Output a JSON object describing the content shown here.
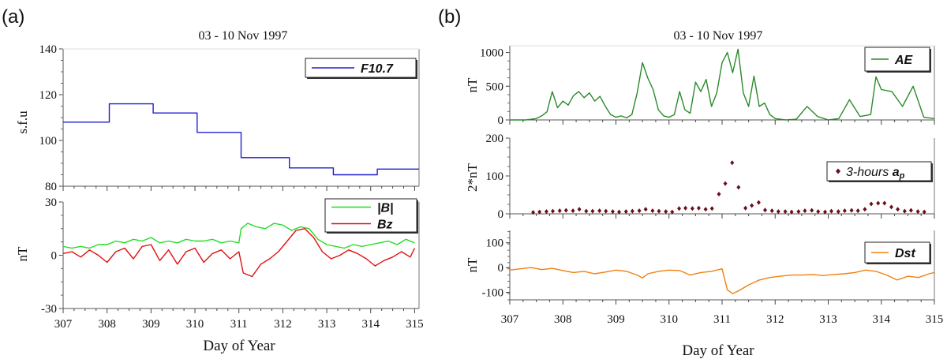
{
  "panels": {
    "a": {
      "label": "(a)",
      "title": "03 - 10 Nov 1997",
      "xlabel": "Day of Year",
      "xticks": [
        "307",
        "308",
        "309",
        "310",
        "311",
        "312",
        "313",
        "314",
        "315"
      ]
    },
    "b": {
      "label": "(b)",
      "title": "03 - 10 Nov 1997",
      "xlabel": "Day of Year",
      "xticks": [
        "307",
        "308",
        "309",
        "310",
        "311",
        "312",
        "313",
        "314",
        "315"
      ]
    }
  },
  "chart_data": [
    {
      "id": "a-top",
      "type": "line",
      "ylabel": "s.f.u",
      "xlim": [
        307,
        315.1
      ],
      "ylim": [
        80,
        140
      ],
      "yticks": [
        "140",
        "120",
        "100",
        "80"
      ],
      "series": [
        {
          "name": "F10.7",
          "color": "#1f1fd0",
          "x": [
            307,
            308.05,
            308.05,
            309.05,
            309.05,
            310.05,
            310.05,
            311.05,
            311.05,
            312.15,
            312.15,
            313.15,
            313.15,
            314.15,
            314.15,
            315.1
          ],
          "y": [
            108,
            108,
            116,
            116,
            112,
            112,
            103.5,
            103.5,
            92.5,
            92.5,
            88,
            88,
            85,
            85,
            87.5,
            87.5
          ]
        }
      ],
      "legend": "top-right"
    },
    {
      "id": "a-bottom",
      "type": "line",
      "ylabel": "nT",
      "xlim": [
        307,
        315.1
      ],
      "ylim": [
        -30,
        30
      ],
      "yticks": [
        "30",
        "0",
        "-30"
      ],
      "series": [
        {
          "name": "|B|",
          "color": "#22dd22",
          "x": [
            307.0,
            307.2,
            307.4,
            307.6,
            307.8,
            308.0,
            308.2,
            308.4,
            308.6,
            308.8,
            309.0,
            309.2,
            309.4,
            309.6,
            309.8,
            310.0,
            310.2,
            310.4,
            310.6,
            310.8,
            311.0,
            311.05,
            311.2,
            311.4,
            311.6,
            311.8,
            312.0,
            312.2,
            312.4,
            312.6,
            312.8,
            313.0,
            313.2,
            313.4,
            313.6,
            313.8,
            314.0,
            314.2,
            314.4,
            314.6,
            314.8,
            315.0
          ],
          "y": [
            5,
            4,
            5,
            4,
            6,
            6,
            8,
            7,
            9,
            8,
            10,
            7,
            8,
            7,
            9,
            8,
            8,
            9,
            7,
            8,
            7,
            15,
            18,
            16,
            15,
            18,
            17,
            14,
            16,
            15,
            9,
            6,
            5,
            4,
            6,
            5,
            6,
            7,
            8,
            6,
            9,
            7
          ]
        },
        {
          "name": "Bz",
          "color": "#e01010",
          "x": [
            307.0,
            307.2,
            307.4,
            307.6,
            307.8,
            308.0,
            308.2,
            308.4,
            308.6,
            308.8,
            309.0,
            309.2,
            309.4,
            309.6,
            309.8,
            310.0,
            310.2,
            310.4,
            310.6,
            310.8,
            311.0,
            311.1,
            311.3,
            311.5,
            311.7,
            311.9,
            312.1,
            312.3,
            312.5,
            312.7,
            312.9,
            313.1,
            313.3,
            313.5,
            313.7,
            313.9,
            314.1,
            314.3,
            314.5,
            314.7,
            314.9,
            315.0
          ],
          "y": [
            1,
            2,
            -1,
            3,
            0,
            -4,
            2,
            4,
            -2,
            5,
            6,
            -3,
            3,
            -5,
            2,
            4,
            -4,
            1,
            3,
            -2,
            2,
            -10,
            -12,
            -5,
            -2,
            2,
            8,
            14,
            15,
            10,
            2,
            -2,
            0,
            3,
            1,
            -2,
            -6,
            -3,
            -1,
            2,
            -1,
            4
          ]
        }
      ],
      "legend": "top-right"
    },
    {
      "id": "b-ae",
      "type": "line",
      "ylabel": "nT",
      "xlim": [
        307,
        315
      ],
      "ylim": [
        0,
        1100
      ],
      "yticks": [
        "1000",
        "500",
        "0"
      ],
      "series": [
        {
          "name": "AE",
          "color": "#2a8a2a",
          "x": [
            307.0,
            307.3,
            307.5,
            307.6,
            307.7,
            307.8,
            307.9,
            308.0,
            308.1,
            308.2,
            308.3,
            308.4,
            308.5,
            308.6,
            308.7,
            308.8,
            308.9,
            309.0,
            309.1,
            309.2,
            309.3,
            309.4,
            309.5,
            309.6,
            309.7,
            309.8,
            309.9,
            310.0,
            310.1,
            310.2,
            310.3,
            310.4,
            310.5,
            310.6,
            310.7,
            310.8,
            310.9,
            311.0,
            311.1,
            311.2,
            311.3,
            311.4,
            311.5,
            311.6,
            311.7,
            311.8,
            311.9,
            312.0,
            312.2,
            312.4,
            312.6,
            312.8,
            313.0,
            313.2,
            313.4,
            313.6,
            313.8,
            313.9,
            314.0,
            314.2,
            314.4,
            314.6,
            314.8,
            315.0
          ],
          "y": [
            0,
            0,
            20,
            60,
            120,
            420,
            180,
            280,
            220,
            360,
            420,
            330,
            400,
            280,
            350,
            200,
            80,
            40,
            60,
            30,
            80,
            400,
            850,
            620,
            450,
            150,
            60,
            40,
            80,
            420,
            150,
            100,
            560,
            420,
            600,
            200,
            400,
            850,
            1000,
            700,
            1050,
            400,
            200,
            650,
            200,
            250,
            80,
            20,
            0,
            10,
            200,
            50,
            0,
            20,
            300,
            50,
            80,
            640,
            450,
            420,
            200,
            500,
            40,
            20
          ]
        }
      ],
      "legend": "top-right"
    },
    {
      "id": "b-ap",
      "type": "scatter",
      "ylabel": "2*nT",
      "xlim": [
        307,
        315
      ],
      "ylim": [
        0,
        200
      ],
      "yticks": [
        "200",
        "100",
        "0"
      ],
      "series": [
        {
          "name": "3-hours ap",
          "color": "#6a0f1a",
          "x": [
            307.44,
            307.56,
            307.69,
            307.81,
            307.94,
            308.06,
            308.19,
            308.31,
            308.44,
            308.56,
            308.69,
            308.81,
            308.94,
            309.06,
            309.19,
            309.31,
            309.44,
            309.56,
            309.69,
            309.81,
            309.94,
            310.06,
            310.19,
            310.31,
            310.44,
            310.56,
            310.69,
            310.81,
            310.94,
            311.06,
            311.19,
            311.31,
            311.44,
            311.56,
            311.69,
            311.81,
            311.94,
            312.06,
            312.19,
            312.31,
            312.44,
            312.56,
            312.69,
            312.81,
            312.94,
            313.06,
            313.19,
            313.31,
            313.44,
            313.56,
            313.69,
            313.81,
            313.94,
            314.06,
            314.19,
            314.31,
            314.44,
            314.56,
            314.69,
            314.81
          ],
          "y": [
            4,
            5,
            6,
            7,
            8,
            9,
            8,
            12,
            7,
            7,
            8,
            7,
            6,
            5,
            6,
            7,
            8,
            12,
            8,
            7,
            6,
            5,
            14,
            15,
            14,
            15,
            12,
            14,
            52,
            80,
            135,
            70,
            15,
            22,
            30,
            10,
            8,
            6,
            6,
            5,
            6,
            8,
            9,
            6,
            5,
            7,
            6,
            8,
            9,
            8,
            12,
            26,
            28,
            28,
            18,
            12,
            7,
            9,
            6,
            5
          ]
        }
      ],
      "legend": "right"
    },
    {
      "id": "b-dst",
      "type": "line",
      "ylabel": "nT",
      "xlim": [
        307,
        315
      ],
      "ylim": [
        -130,
        150
      ],
      "yticks": [
        "100",
        "0",
        "-100"
      ],
      "series": [
        {
          "name": "Dst",
          "color": "#f08010",
          "x": [
            307.0,
            307.2,
            307.4,
            307.6,
            307.8,
            308.0,
            308.2,
            308.4,
            308.6,
            308.8,
            309.0,
            309.2,
            309.4,
            309.5,
            309.6,
            309.8,
            310.0,
            310.2,
            310.4,
            310.6,
            310.8,
            311.0,
            311.1,
            311.2,
            311.3,
            311.5,
            311.7,
            311.9,
            312.1,
            312.3,
            312.5,
            312.7,
            312.9,
            313.1,
            313.3,
            313.5,
            313.7,
            313.9,
            314.1,
            314.3,
            314.5,
            314.7,
            314.9,
            315.0
          ],
          "y": [
            -10,
            -5,
            0,
            -8,
            -3,
            -12,
            -20,
            -15,
            -25,
            -18,
            -10,
            -15,
            -30,
            -42,
            -25,
            -15,
            -10,
            -12,
            -30,
            -20,
            -15,
            -5,
            -90,
            -105,
            -95,
            -70,
            -50,
            -40,
            -35,
            -30,
            -30,
            -28,
            -32,
            -28,
            -25,
            -20,
            -10,
            -15,
            -30,
            -50,
            -35,
            -40,
            -25,
            -20
          ]
        }
      ],
      "legend": "right"
    }
  ]
}
